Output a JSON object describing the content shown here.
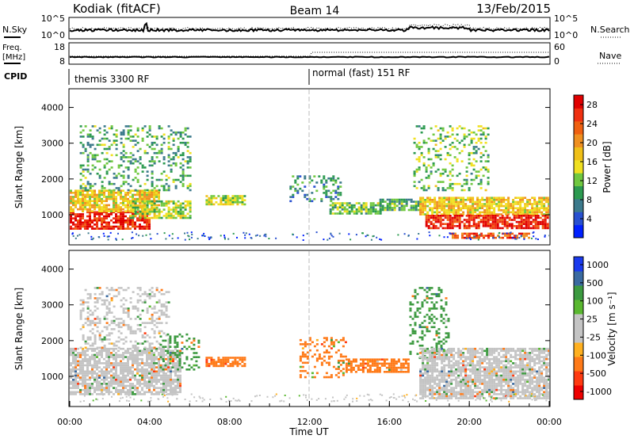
{
  "header": {
    "station": "Kodiak (fitACF)",
    "beam": "Beam 14",
    "date": "13/Feb/2015"
  },
  "left_labels": {
    "nsky": "N.Sky",
    "freq_line1": "Freq.",
    "freq_line2": "[MHz]",
    "cpid": "CPID"
  },
  "right_labels": {
    "nsearch": "N.Search",
    "nave": "Nave"
  },
  "noise_axis": {
    "left_top": "10^5",
    "left_bottom": "10^0",
    "right_top": "10^5",
    "right_bottom": "10^0"
  },
  "freq_axis": {
    "left_top": "18",
    "left_bottom": "8",
    "right_top": "60",
    "right_bottom": "0"
  },
  "cpid_modes": [
    {
      "label": "themis 3300 RF",
      "start_hour": 0
    },
    {
      "label": "normal (fast) 151 RF",
      "start_hour": 12
    }
  ],
  "colors": {
    "power": [
      "#0020ff",
      "#2850d0",
      "#3c7a8c",
      "#2c9a50",
      "#70c840",
      "#f0e020",
      "#f0c018",
      "#f09020",
      "#f06010",
      "#f03010",
      "#e00000"
    ],
    "velocity": [
      "#ee0000",
      "#ff3a10",
      "#ff7a18",
      "#ffb020",
      "#c4c4c4",
      "#c4c4c4",
      "#5ab830",
      "#3c9a40",
      "#3a6aa0",
      "#1a3aee"
    ]
  },
  "chart_data": [
    {
      "type": "heatmap",
      "panel": "power",
      "xlabel": "",
      "ylabel": "Slant Range [km]",
      "xlim": [
        0,
        24
      ],
      "ylim": [
        180,
        4500
      ],
      "yticks": [
        1000,
        2000,
        3000,
        4000
      ],
      "colorbar": {
        "label": "Power [dB]",
        "range": [
          0,
          30
        ],
        "ticks": [
          4,
          8,
          12,
          16,
          20,
          24,
          28
        ]
      },
      "echo_regions": [
        {
          "x": [
            0.0,
            4.0
          ],
          "y": [
            600,
            1100
          ],
          "value_db": 27
        },
        {
          "x": [
            0.0,
            4.5
          ],
          "y": [
            1100,
            1700
          ],
          "value_db": 17
        },
        {
          "x": [
            0.5,
            6.0
          ],
          "y": [
            1700,
            3500
          ],
          "value_db": 10
        },
        {
          "x": [
            3.0,
            6.0
          ],
          "y": [
            900,
            1400
          ],
          "value_db": 14
        },
        {
          "x": [
            6.8,
            8.8
          ],
          "y": [
            1300,
            1550
          ],
          "value_db": 14
        },
        {
          "x": [
            11.0,
            13.5
          ],
          "y": [
            1400,
            2100
          ],
          "value_db": 8
        },
        {
          "x": [
            13.0,
            15.5
          ],
          "y": [
            1050,
            1350
          ],
          "value_db": 12
        },
        {
          "x": [
            15.5,
            17.5
          ],
          "y": [
            1150,
            1450
          ],
          "value_db": 10
        },
        {
          "x": [
            17.2,
            21.0
          ],
          "y": [
            1700,
            3500
          ],
          "value_db": 12
        },
        {
          "x": [
            17.5,
            24.0
          ],
          "y": [
            1000,
            1500
          ],
          "value_db": 17
        },
        {
          "x": [
            17.8,
            24.0
          ],
          "y": [
            600,
            1000
          ],
          "value_db": 27
        },
        {
          "x": [
            19.0,
            23.0
          ],
          "y": [
            380,
            500
          ],
          "value_db": 24
        }
      ]
    },
    {
      "type": "heatmap",
      "panel": "velocity",
      "xlabel": "Time UT",
      "ylabel": "Slant Range [km]",
      "xlim": [
        0,
        24
      ],
      "ylim": [
        180,
        4500
      ],
      "xticks": [
        "00:00",
        "04:00",
        "08:00",
        "12:00",
        "16:00",
        "20:00",
        "00:00"
      ],
      "yticks": [
        1000,
        2000,
        3000,
        4000
      ],
      "colorbar": {
        "label": "Velocity [m s⁻¹]",
        "range": [
          -1200,
          1200
        ],
        "ticks": [
          1000,
          500,
          100,
          25,
          -25,
          -100,
          -500,
          -1000
        ]
      },
      "echo_regions": [
        {
          "x": [
            0.0,
            5.5
          ],
          "y": [
            500,
            1800
          ],
          "velocity": 0
        },
        {
          "x": [
            0.5,
            5.0
          ],
          "y": [
            1800,
            3500
          ],
          "velocity": 0
        },
        {
          "x": [
            4.5,
            6.5
          ],
          "y": [
            1200,
            2200
          ],
          "velocity": 150
        },
        {
          "x": [
            6.8,
            8.8
          ],
          "y": [
            1300,
            1550
          ],
          "velocity": -300
        },
        {
          "x": [
            11.5,
            13.8
          ],
          "y": [
            1000,
            2100
          ],
          "velocity": -400
        },
        {
          "x": [
            13.8,
            17.0
          ],
          "y": [
            1150,
            1500
          ],
          "velocity": -200
        },
        {
          "x": [
            17.0,
            19.0
          ],
          "y": [
            1500,
            3500
          ],
          "velocity": 150
        },
        {
          "x": [
            17.5,
            24.0
          ],
          "y": [
            400,
            1800
          ],
          "velocity": 0
        }
      ]
    }
  ]
}
